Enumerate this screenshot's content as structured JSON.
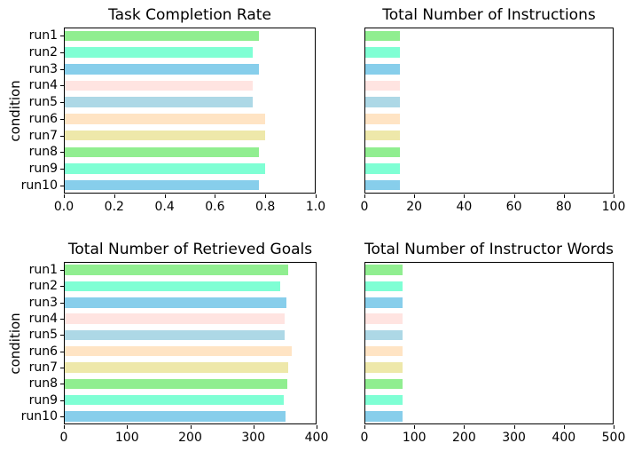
{
  "figure": {
    "background": "#ffffff",
    "spine_color": "#000000",
    "text_color": "#000000"
  },
  "palette": [
    "#90EE90",
    "#7FFFD4",
    "#87CEEB",
    "#FFE4E1",
    "#ADD8E6",
    "#FFE4C4",
    "#EEE8AA"
  ],
  "chart_data": [
    {
      "type": "bar",
      "orientation": "horizontal",
      "title": "Task Completion Rate",
      "ylabel": "condition",
      "xlabel": "",
      "categories": [
        "run1",
        "run2",
        "run3",
        "run4",
        "run5",
        "run6",
        "run7",
        "run8",
        "run9",
        "run10"
      ],
      "values": [
        0.775,
        0.75,
        0.775,
        0.75,
        0.75,
        0.8,
        0.8,
        0.775,
        0.8,
        0.775
      ],
      "xlim": [
        0,
        1.0
      ],
      "xtick_labels": [
        "0.0",
        "0.2",
        "0.4",
        "0.6",
        "0.8",
        "1.0"
      ],
      "show_ytick_labels": true,
      "grid": false,
      "legend": false
    },
    {
      "type": "bar",
      "orientation": "horizontal",
      "title": "Total Number of Instructions",
      "ylabel": "",
      "xlabel": "",
      "categories": [
        "run1",
        "run2",
        "run3",
        "run4",
        "run5",
        "run6",
        "run7",
        "run8",
        "run9",
        "run10"
      ],
      "values": [
        14,
        14,
        14,
        14,
        14,
        14,
        14,
        14,
        14,
        14
      ],
      "xlim": [
        0,
        100
      ],
      "xtick_labels": [
        "0",
        "20",
        "40",
        "60",
        "80",
        "100"
      ],
      "show_ytick_labels": false,
      "grid": false,
      "legend": false
    },
    {
      "type": "bar",
      "orientation": "horizontal",
      "title": "Total Number of Retrieved Goals",
      "ylabel": "condition",
      "xlabel": "",
      "categories": [
        "run1",
        "run2",
        "run3",
        "run4",
        "run5",
        "run6",
        "run7",
        "run8",
        "run9",
        "run10"
      ],
      "values": [
        355,
        342,
        352,
        349,
        349,
        360,
        355,
        353,
        348,
        350
      ],
      "xlim": [
        0,
        400
      ],
      "xtick_labels": [
        "0",
        "100",
        "200",
        "300",
        "400"
      ],
      "show_ytick_labels": true,
      "grid": false,
      "legend": false
    },
    {
      "type": "bar",
      "orientation": "horizontal",
      "title": "Total Number of Instructor Words",
      "ylabel": "",
      "xlabel": "",
      "categories": [
        "run1",
        "run2",
        "run3",
        "run4",
        "run5",
        "run6",
        "run7",
        "run8",
        "run9",
        "run10"
      ],
      "values": [
        75,
        75,
        75,
        75,
        75,
        75,
        75,
        75,
        75,
        75
      ],
      "xlim": [
        0,
        500
      ],
      "xtick_labels": [
        "0",
        "100",
        "200",
        "300",
        "400",
        "500"
      ],
      "show_ytick_labels": false,
      "grid": false,
      "legend": false
    }
  ]
}
